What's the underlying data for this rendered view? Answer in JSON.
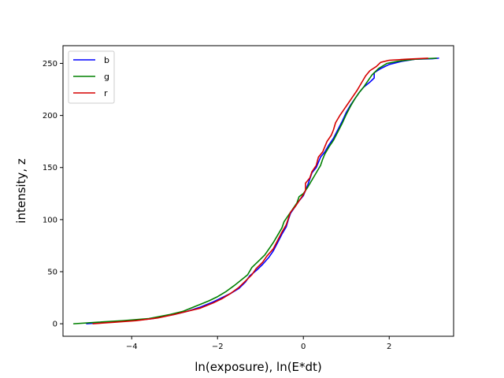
{
  "chart_data": {
    "type": "line",
    "title": "",
    "xlabel": "ln(exposure), ln(E*dt)",
    "ylabel": "intensity, z",
    "xlim": [
      -5.6,
      3.5
    ],
    "ylim": [
      -12,
      267
    ],
    "xticks": [
      -4,
      -2,
      0,
      2
    ],
    "xtick_labels": [
      "−4",
      "−2",
      "0",
      "2"
    ],
    "yticks": [
      0,
      50,
      100,
      150,
      200,
      250
    ],
    "ytick_labels": [
      "0",
      "50",
      "100",
      "150",
      "200",
      "250"
    ],
    "grid": false,
    "legend": {
      "placement": "top-left",
      "entries": [
        "b",
        "g",
        "r"
      ]
    },
    "series": [
      {
        "name": "b",
        "color": "#0000ff",
        "points": [
          [
            -5.05,
            0
          ],
          [
            -4.5,
            1.5
          ],
          [
            -4.0,
            3
          ],
          [
            -3.5,
            5
          ],
          [
            -3.0,
            9
          ],
          [
            -2.7,
            12
          ],
          [
            -2.4,
            16
          ],
          [
            -2.1,
            21
          ],
          [
            -1.9,
            25
          ],
          [
            -1.7,
            29
          ],
          [
            -1.5,
            34
          ],
          [
            -1.35,
            40
          ],
          [
            -1.25,
            46
          ],
          [
            -1.1,
            51
          ],
          [
            -0.95,
            57
          ],
          [
            -0.8,
            64
          ],
          [
            -0.7,
            70
          ],
          [
            -0.6,
            78
          ],
          [
            -0.5,
            86
          ],
          [
            -0.4,
            93
          ],
          [
            -0.35,
            100
          ],
          [
            -0.3,
            106
          ],
          [
            -0.2,
            112
          ],
          [
            -0.1,
            118
          ],
          [
            0.0,
            123
          ],
          [
            0.05,
            128
          ],
          [
            0.1,
            133
          ],
          [
            0.15,
            139
          ],
          [
            0.2,
            145
          ],
          [
            0.3,
            150
          ],
          [
            0.35,
            155
          ],
          [
            0.4,
            160
          ],
          [
            0.5,
            165
          ],
          [
            0.6,
            172
          ],
          [
            0.7,
            178
          ],
          [
            0.8,
            186
          ],
          [
            0.9,
            194
          ],
          [
            1.0,
            203
          ],
          [
            1.1,
            210
          ],
          [
            1.2,
            216
          ],
          [
            1.3,
            222
          ],
          [
            1.4,
            227
          ],
          [
            1.55,
            232
          ],
          [
            1.65,
            236
          ],
          [
            1.65,
            241
          ],
          [
            1.8,
            245
          ],
          [
            2.0,
            249
          ],
          [
            2.3,
            252
          ],
          [
            2.6,
            254
          ],
          [
            3.0,
            254.5
          ],
          [
            3.15,
            255
          ]
        ]
      },
      {
        "name": "g",
        "color": "#008000",
        "points": [
          [
            -5.35,
            0
          ],
          [
            -4.8,
            1.5
          ],
          [
            -4.2,
            3
          ],
          [
            -3.6,
            5
          ],
          [
            -3.1,
            9
          ],
          [
            -2.8,
            12
          ],
          [
            -2.5,
            17
          ],
          [
            -2.2,
            22
          ],
          [
            -2.0,
            26
          ],
          [
            -1.8,
            31
          ],
          [
            -1.6,
            37
          ],
          [
            -1.45,
            42
          ],
          [
            -1.3,
            47
          ],
          [
            -1.2,
            54
          ],
          [
            -1.05,
            60
          ],
          [
            -0.9,
            66
          ],
          [
            -0.8,
            72
          ],
          [
            -0.7,
            78
          ],
          [
            -0.6,
            85
          ],
          [
            -0.5,
            92
          ],
          [
            -0.45,
            98
          ],
          [
            -0.35,
            104
          ],
          [
            -0.25,
            110
          ],
          [
            -0.15,
            116
          ],
          [
            -0.1,
            122
          ],
          [
            0.0,
            125
          ],
          [
            0.1,
            131
          ],
          [
            0.2,
            138
          ],
          [
            0.3,
            145
          ],
          [
            0.4,
            152
          ],
          [
            0.45,
            158
          ],
          [
            0.5,
            163
          ],
          [
            0.6,
            170
          ],
          [
            0.7,
            176
          ],
          [
            0.8,
            184
          ],
          [
            0.9,
            192
          ],
          [
            1.0,
            201
          ],
          [
            1.1,
            209
          ],
          [
            1.2,
            216
          ],
          [
            1.3,
            222
          ],
          [
            1.4,
            227
          ],
          [
            1.5,
            233
          ],
          [
            1.6,
            239
          ],
          [
            1.75,
            245
          ],
          [
            1.95,
            250
          ],
          [
            2.2,
            252
          ],
          [
            2.6,
            254
          ],
          [
            3.1,
            255
          ]
        ]
      },
      {
        "name": "r",
        "color": "#d60000",
        "points": [
          [
            -4.9,
            0
          ],
          [
            -4.4,
            1.5
          ],
          [
            -3.9,
            3
          ],
          [
            -3.4,
            5.5
          ],
          [
            -3.0,
            9
          ],
          [
            -2.7,
            12
          ],
          [
            -2.4,
            15
          ],
          [
            -2.1,
            20
          ],
          [
            -1.9,
            24
          ],
          [
            -1.7,
            29
          ],
          [
            -1.5,
            35
          ],
          [
            -1.35,
            41
          ],
          [
            -1.2,
            47
          ],
          [
            -1.1,
            53
          ],
          [
            -0.95,
            59
          ],
          [
            -0.85,
            65
          ],
          [
            -0.7,
            72
          ],
          [
            -0.6,
            80
          ],
          [
            -0.5,
            88
          ],
          [
            -0.4,
            95
          ],
          [
            -0.35,
            101
          ],
          [
            -0.3,
            107
          ],
          [
            -0.2,
            112
          ],
          [
            -0.1,
            118
          ],
          [
            0.0,
            124
          ],
          [
            0.05,
            128
          ],
          [
            0.05,
            135
          ],
          [
            0.15,
            140
          ],
          [
            0.2,
            146
          ],
          [
            0.3,
            152
          ],
          [
            0.35,
            160
          ],
          [
            0.45,
            165
          ],
          [
            0.5,
            170
          ],
          [
            0.55,
            175
          ],
          [
            0.65,
            181
          ],
          [
            0.7,
            186
          ],
          [
            0.75,
            193
          ],
          [
            0.85,
            200
          ],
          [
            0.95,
            206
          ],
          [
            1.05,
            212
          ],
          [
            1.15,
            218
          ],
          [
            1.25,
            224
          ],
          [
            1.35,
            231
          ],
          [
            1.45,
            238
          ],
          [
            1.55,
            243
          ],
          [
            1.7,
            247
          ],
          [
            1.8,
            251
          ],
          [
            2.0,
            253
          ],
          [
            2.4,
            254
          ],
          [
            2.9,
            255
          ]
        ]
      }
    ]
  }
}
